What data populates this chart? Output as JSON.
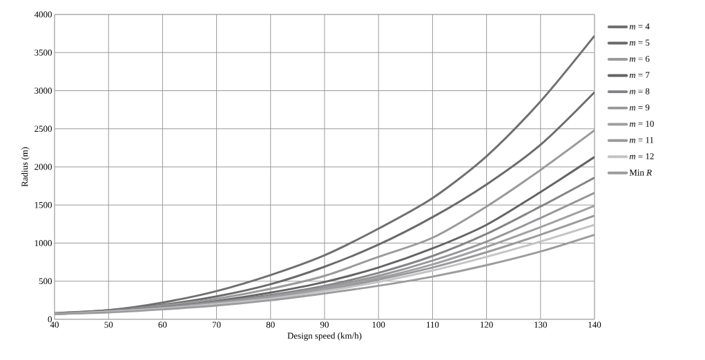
{
  "chart_data": {
    "type": "line",
    "xlabel": "Design speed (km/h)",
    "ylabel": "Radius (m)",
    "x": [
      40,
      50,
      60,
      70,
      80,
      90,
      100,
      110,
      120,
      130,
      140
    ],
    "xlim": [
      40,
      140
    ],
    "xticks": [
      40,
      50,
      60,
      70,
      80,
      90,
      100,
      110,
      120,
      130,
      140
    ],
    "ylim": [
      0,
      4000
    ],
    "yticks": [
      0,
      500,
      1000,
      1500,
      2000,
      2500,
      3000,
      3500,
      4000
    ],
    "grid": true,
    "legend": "right",
    "marker": "none",
    "line_style": "solid",
    "series": [
      {
        "name": "*m* = 4",
        "color": "#707070",
        "values": [
          80,
          120,
          220,
          370,
          580,
          840,
          1190,
          1590,
          2140,
          2860,
          3720
        ]
      },
      {
        "name": "*m* = 5",
        "color": "#6a6a6a",
        "values": [
          80,
          120,
          190,
          300,
          460,
          690,
          980,
          1340,
          1770,
          2290,
          2980
        ]
      },
      {
        "name": "*m* = 6",
        "color": "#9a9a9c",
        "values": [
          70,
          110,
          180,
          270,
          400,
          570,
          820,
          1070,
          1480,
          1960,
          2480
        ]
      },
      {
        "name": "*m* = 7",
        "color": "#646464",
        "values": [
          70,
          110,
          160,
          240,
          350,
          490,
          680,
          930,
          1240,
          1670,
          2130
        ]
      },
      {
        "name": "*m* = 8",
        "color": "#858588",
        "values": [
          70,
          110,
          160,
          230,
          320,
          440,
          610,
          830,
          1120,
          1480,
          1860
        ]
      },
      {
        "name": "*m* = 9",
        "color": "#97979a",
        "values": [
          70,
          100,
          150,
          220,
          300,
          420,
          570,
          770,
          1020,
          1330,
          1660
        ]
      },
      {
        "name": "*m* = 10",
        "color": "#a0a0a2",
        "values": [
          70,
          100,
          150,
          210,
          290,
          400,
          540,
          720,
          950,
          1210,
          1490
        ]
      },
      {
        "name": "*m* = 11",
        "color": "#9a9a9c",
        "values": [
          70,
          100,
          140,
          200,
          280,
          380,
          520,
          680,
          880,
          1110,
          1360
        ]
      },
      {
        "name": "*m* = 12",
        "color": "#c4c4c6",
        "values": [
          70,
          100,
          140,
          200,
          270,
          370,
          490,
          640,
          820,
          1020,
          1240
        ]
      },
      {
        "name": "Min *R*",
        "color": "#9c9c9e",
        "values": [
          70,
          90,
          130,
          180,
          250,
          340,
          440,
          560,
          710,
          890,
          1110
        ]
      }
    ]
  }
}
